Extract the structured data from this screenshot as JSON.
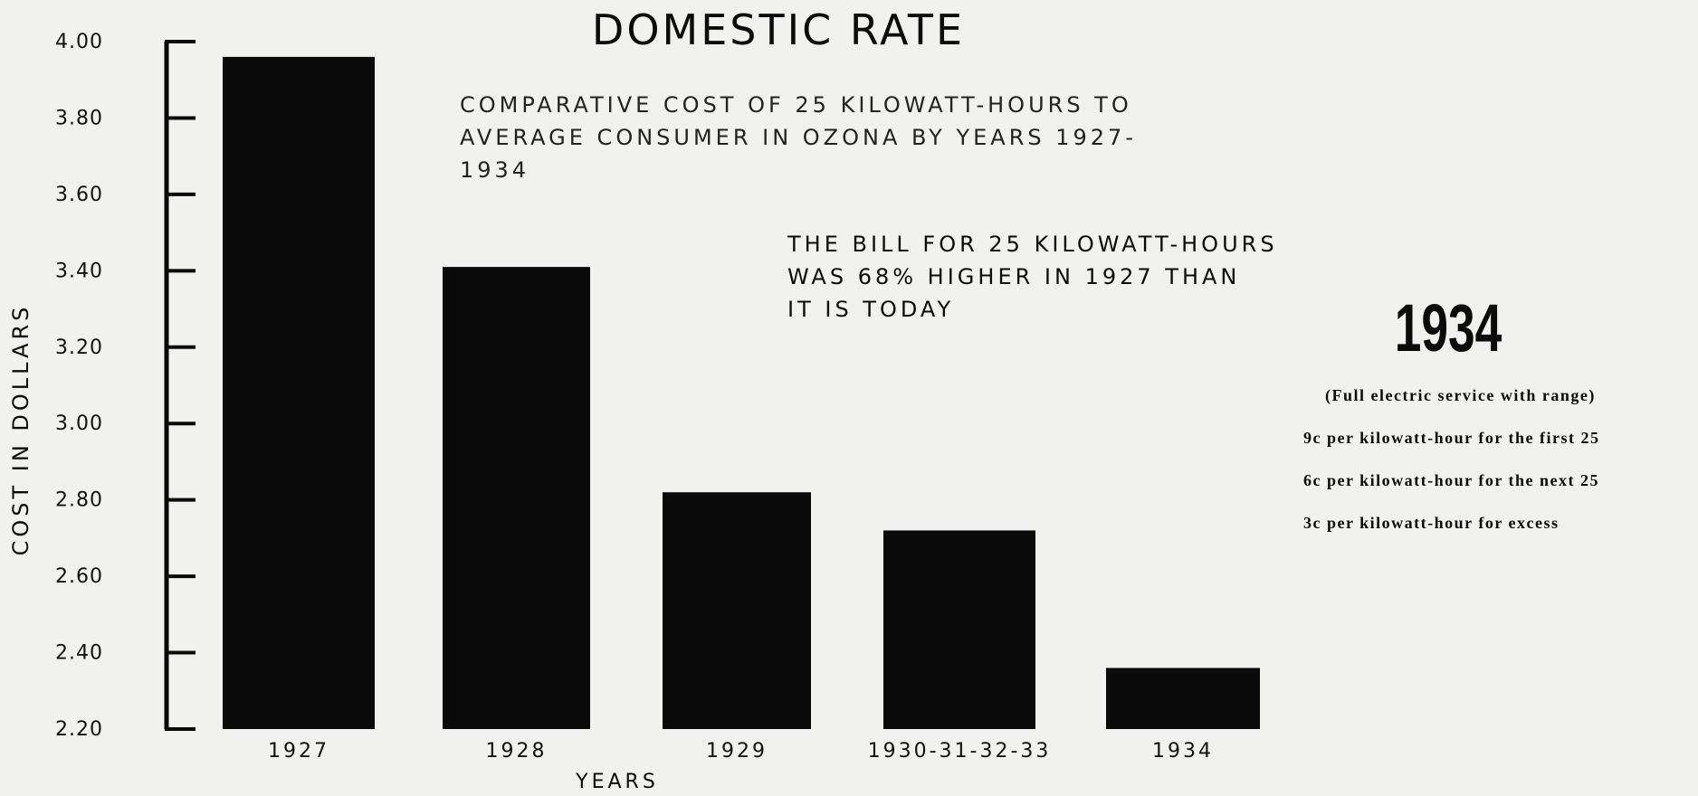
{
  "chart_data": {
    "type": "bar",
    "title": "DOMESTIC RATE",
    "subtitle_lines": [
      "COMPARATIVE COST OF 25 KILOWATT-HOURS TO",
      "AVERAGE CONSUMER IN OZONA BY YEARS 1927-1934"
    ],
    "categories": [
      "1927",
      "1928",
      "1929",
      "1930-31-32-33",
      "1934"
    ],
    "values": [
      3.96,
      3.41,
      2.82,
      2.72,
      2.36
    ],
    "ylabel": "COST IN DOLLARS",
    "xlabel": "YEARS",
    "ylim": [
      2.2,
      4.0
    ],
    "yticks": [
      "2.20",
      "2.40",
      "2.60",
      "2.80",
      "3.00",
      "3.20",
      "3.40",
      "3.60",
      "3.80",
      "4.00"
    ],
    "bar_color": "#0a0a0a",
    "grid": false,
    "annotation_lines": [
      "THE BILL FOR 25 KILOWATT-HOURS",
      "WAS 68% HIGHER IN 1927 THAN",
      "IT IS TODAY"
    ]
  },
  "rate_panel": {
    "year": "1934",
    "note": "(Full electric service with range)",
    "lines": [
      "9c per kilowatt-hour for the first 25",
      "6c per kilowatt-hour for the next 25",
      "3c per kilowatt-hour for excess"
    ]
  }
}
